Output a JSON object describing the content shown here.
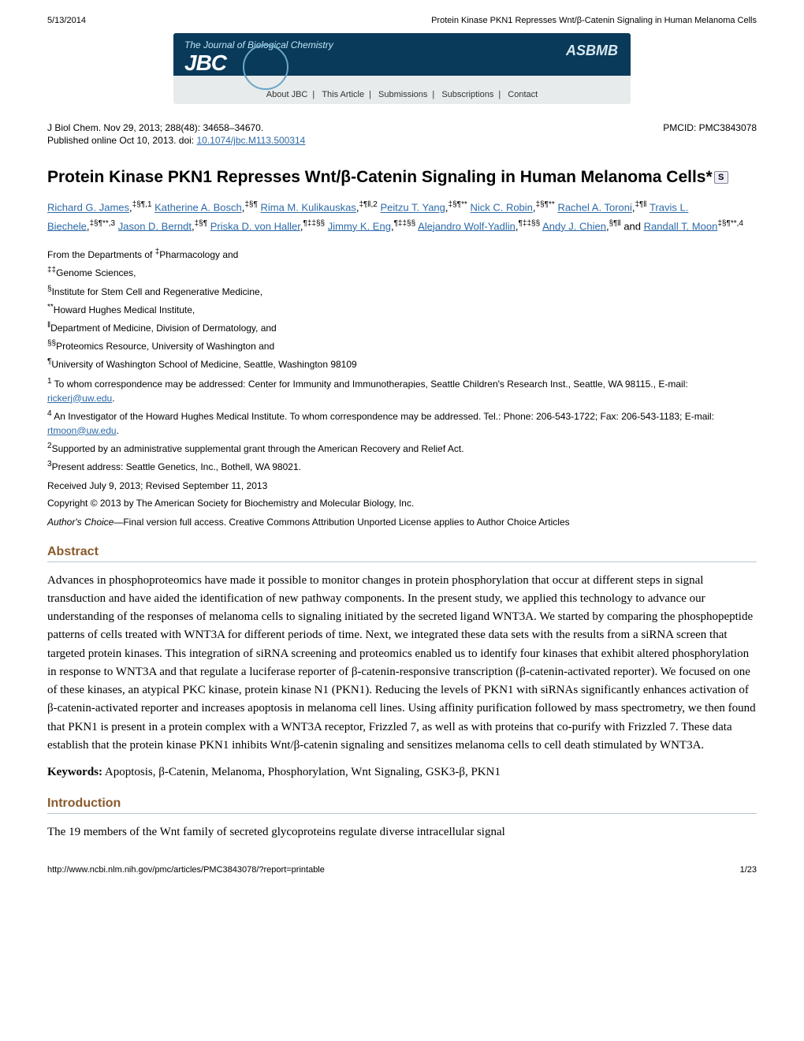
{
  "page_header": {
    "date": "5/13/2014",
    "running_title": "Protein Kinase PKN1 Represses Wnt/β-Catenin Signaling in Human Melanoma Cells"
  },
  "banner": {
    "journal_full": "The Journal of Biological Chemistry",
    "journal_short": "JBC",
    "society": "ASBMB",
    "nav_items": [
      "About JBC",
      "This Article",
      "Submissions",
      "Subscriptions",
      "Contact"
    ]
  },
  "citation": {
    "line": "J Biol Chem. Nov 29, 2013; 288(48): 34658–34670.",
    "pmcid": "PMCID: PMC3843078",
    "pub_online_prefix": "Published online Oct 10, 2013. doi: ",
    "doi": "10.1074/jbc.M113.500314"
  },
  "title": "Protein Kinase PKN1 Represses Wnt/β-Catenin Signaling in Human Melanoma Cells",
  "title_footnote": "*",
  "authors": [
    {
      "name": "Richard G. James",
      "affil": "‡§¶,1"
    },
    {
      "name": "Katherine A. Bosch",
      "affil": "‡§¶"
    },
    {
      "name": "Rima M. Kulikauskas",
      "affil": "‡¶‖,2"
    },
    {
      "name": "Peitzu T. Yang",
      "affil": "‡§¶**"
    },
    {
      "name": "Nick C. Robin",
      "affil": "‡§¶**"
    },
    {
      "name": "Rachel A. Toroni",
      "affil": "‡¶‖"
    },
    {
      "name": "Travis L. Biechele",
      "affil": "‡§¶**,3"
    },
    {
      "name": "Jason D. Berndt",
      "affil": "‡§¶"
    },
    {
      "name": "Priska D. von Haller",
      "affil": "¶‡‡§§"
    },
    {
      "name": "Jimmy K. Eng",
      "affil": "¶‡‡§§"
    },
    {
      "name": "Alejandro Wolf-Yadlin",
      "affil": "¶‡‡§§"
    },
    {
      "name": "Andy J. Chien",
      "affil": "§¶‖"
    },
    {
      "name": "Randall T. Moon",
      "affil": "‡§¶**,4"
    }
  ],
  "author_sep_and": " and ",
  "affiliations": [
    {
      "symbol": "‡",
      "text": "Pharmacology and",
      "prefix": "From the Departments of "
    },
    {
      "symbol": "‡‡",
      "text": "Genome Sciences,"
    },
    {
      "symbol": "§",
      "text": "Institute for Stem Cell and Regenerative Medicine,"
    },
    {
      "symbol": "**",
      "text": "Howard Hughes Medical Institute,"
    },
    {
      "symbol": "‖",
      "text": "Department of Medicine, Division of Dermatology, and"
    },
    {
      "symbol": "§§",
      "text": "Proteomics Resource, University of Washington and"
    },
    {
      "symbol": "¶",
      "text": "University of Washington School of Medicine, Seattle, Washington 98109"
    }
  ],
  "footnotes": [
    {
      "symbol": "1",
      "text_a": " To whom correspondence may be addressed: Center for Immunity and Immunotherapies, Seattle Children's Research Inst., Seattle, WA 98115., E-mail: ",
      "link": "rickerj@uw.edu",
      "text_b": "."
    },
    {
      "symbol": "4",
      "text_a": " An Investigator of the Howard Hughes Medical Institute. To whom correspondence may be addressed. Tel.: Phone: 206-543-1722; Fax: 206-543-1183; E-mail: ",
      "link": "rtmoon@uw.edu",
      "text_b": "."
    },
    {
      "symbol": "2",
      "text_a": "Supported by an administrative supplemental grant through the American Recovery and Relief Act.",
      "link": "",
      "text_b": ""
    },
    {
      "symbol": "3",
      "text_a": "Present address: Seattle Genetics, Inc., Bothell, WA 98021.",
      "link": "",
      "text_b": ""
    }
  ],
  "received": "Received July 9, 2013; Revised September 11, 2013",
  "copyright": {
    "link": "Copyright",
    "rest": " © 2013 by The American Society for Biochemistry and Molecular Biology, Inc."
  },
  "authors_choice": {
    "label": "Author's Choice",
    "dash": "—",
    "rest_a": "Final version full access. ",
    "link": "Creative Commons Attribution Unported License",
    "rest_b": " applies to Author Choice Articles"
  },
  "sections": {
    "abstract_heading": "Abstract",
    "abstract_text": "Advances in phosphoproteomics have made it possible to monitor changes in protein phosphorylation that occur at different steps in signal transduction and have aided the identification of new pathway components. In the present study, we applied this technology to advance our understanding of the responses of melanoma cells to signaling initiated by the secreted ligand WNT3A. We started by comparing the phosphopeptide patterns of cells treated with WNT3A for different periods of time. Next, we integrated these data sets with the results from a siRNA screen that targeted protein kinases. This integration of siRNA screening and proteomics enabled us to identify four kinases that exhibit altered phosphorylation in response to WNT3A and that regulate a luciferase reporter of β-catenin-responsive transcription (β-catenin-activated reporter). We focused on one of these kinases, an atypical PKC kinase, protein kinase N1 (PKN1). Reducing the levels of PKN1 with siRNAs significantly enhances activation of β-catenin-activated reporter and increases apoptosis in melanoma cell lines. Using affinity purification followed by mass spectrometry, we then found that PKN1 is present in a protein complex with a WNT3A receptor, Frizzled 7, as well as with proteins that co-purify with Frizzled 7. These data establish that the protein kinase PKN1 inhibits Wnt/β-catenin signaling and sensitizes melanoma cells to cell death stimulated by WNT3A.",
    "keywords_label": "Keywords:",
    "keywords": " Apoptosis, β-Catenin, Melanoma, Phosphorylation, Wnt Signaling, GSK3-β, PKN1",
    "intro_heading": "Introduction",
    "intro_text": "The 19 members of the Wnt family of secreted glycoproteins regulate diverse intracellular signal"
  },
  "page_footer": {
    "url": "http://www.ncbi.nlm.nih.gov/pmc/articles/PMC3843078/?report=printable",
    "page": "1/23"
  },
  "colors": {
    "link": "#2e6aa8",
    "section_heading": "#8a5a2b",
    "section_rule": "#b9c7d1"
  }
}
